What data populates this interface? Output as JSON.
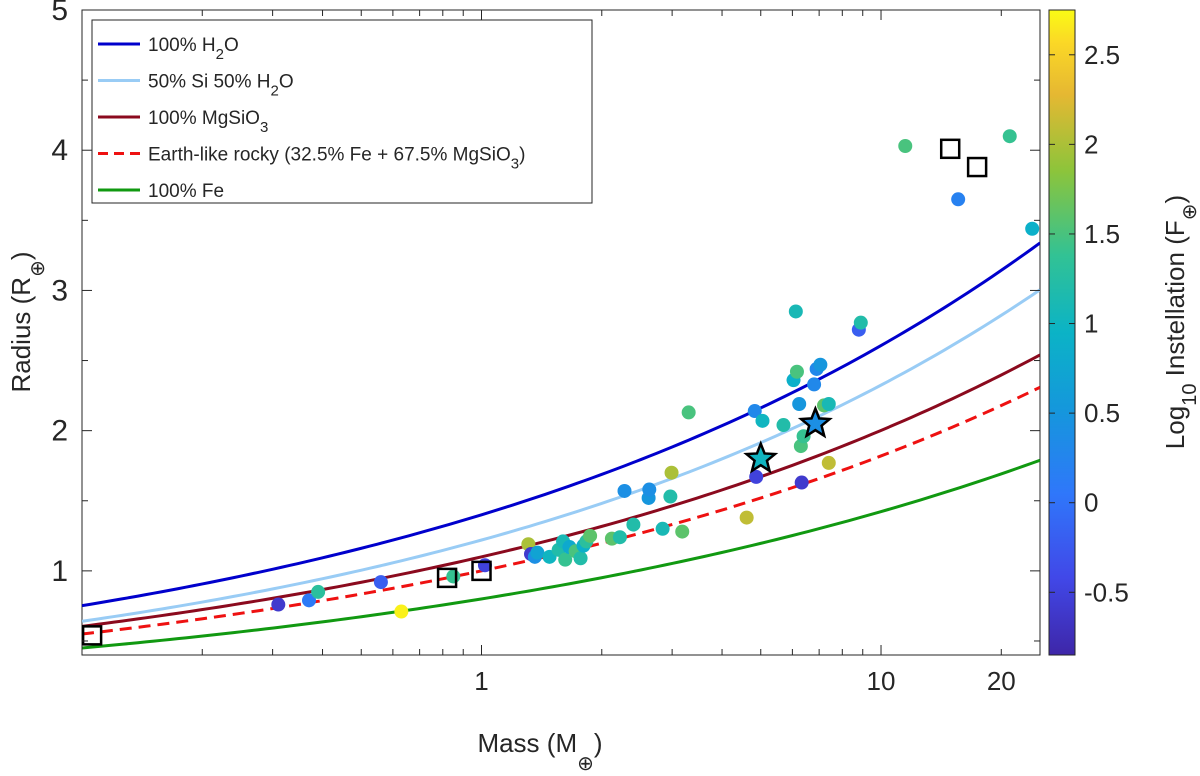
{
  "chart_data": {
    "type": "scatter",
    "x_scale": "log",
    "xlim": [
      0.1,
      25
    ],
    "ylim": [
      0.4,
      5
    ],
    "grid": false,
    "xlabel": {
      "main": "Mass (M",
      "sub": "⊕",
      "close": ")"
    },
    "ylabel": {
      "main": "Radius (R",
      "sub": "⊕",
      "close": ")"
    },
    "colorbar": {
      "label_main": "Log",
      "label_sub": "10",
      "label_rest": " Instellation  (F",
      "label_subsub": "⊕",
      "label_close": ")",
      "range": [
        -0.85,
        2.75
      ],
      "ticks": [
        {
          "v": -0.5,
          "label": "-0.5"
        },
        {
          "v": 0,
          "label": "0"
        },
        {
          "v": 0.5,
          "label": "0.5"
        },
        {
          "v": 1,
          "label": "1"
        },
        {
          "v": 1.5,
          "label": "1.5"
        },
        {
          "v": 2,
          "label": "2"
        },
        {
          "v": 2.5,
          "label": "2.5"
        }
      ]
    },
    "x_ticks": [
      {
        "v": 1,
        "label": "1"
      },
      {
        "v": 10,
        "label": "10"
      },
      {
        "v": 20,
        "label": "20"
      }
    ],
    "y_ticks": [
      {
        "v": 1,
        "label": "1"
      },
      {
        "v": 2,
        "label": "2"
      },
      {
        "v": 3,
        "label": "3"
      },
      {
        "v": 4,
        "label": "4"
      },
      {
        "v": 5,
        "label": "5"
      }
    ],
    "legend_position": "top-left",
    "curves": [
      {
        "name": "100% H2O",
        "label": "100% H",
        "label_sub": "2",
        "label_rest": "O",
        "label_sub2": "",
        "label_end": "",
        "color": "#0000cc",
        "dash": false,
        "coef": 1.4,
        "exp": 0.27
      },
      {
        "name": "50% Si 50% H2O",
        "label": "50% Si 50% H",
        "label_sub": "2",
        "label_rest": "O",
        "label_sub2": "",
        "label_end": "",
        "color": "#99ccf5",
        "dash": false,
        "coef": 1.22,
        "exp": 0.28
      },
      {
        "name": "100% MgSiO3",
        "label": "100% MgSiO",
        "label_sub": "3",
        "label_rest": "",
        "label_sub2": "",
        "label_end": "",
        "color": "#8b0a1e",
        "dash": false,
        "coef": 1.1,
        "exp": 0.26
      },
      {
        "name": "Earth-like rocky",
        "label": "Earth-like rocky (32.5% Fe + 67.5% MgSiO",
        "label_sub": "3",
        "label_rest": ")",
        "label_sub2": "",
        "label_end": "",
        "color": "#ee1111",
        "dash": true,
        "coef": 1.0,
        "exp": 0.26
      },
      {
        "name": "100% Fe",
        "label": "100% Fe",
        "label_sub": "",
        "label_rest": "",
        "label_sub2": "",
        "label_end": "",
        "color": "#119911",
        "dash": false,
        "coef": 0.8,
        "exp": 0.25
      }
    ],
    "points": [
      {
        "m": 0.31,
        "r": 0.76,
        "c": -0.6
      },
      {
        "m": 0.37,
        "r": 0.79,
        "c": 0.1
      },
      {
        "m": 0.39,
        "r": 0.85,
        "c": 1.3
      },
      {
        "m": 0.63,
        "r": 0.71,
        "c": 2.7
      },
      {
        "m": 0.56,
        "r": 0.92,
        "c": -0.2
      },
      {
        "m": 0.85,
        "r": 0.96,
        "c": 1.4
      },
      {
        "m": 1.02,
        "r": 1.04,
        "c": -0.5
      },
      {
        "m": 1.31,
        "r": 1.19,
        "c": 2.0
      },
      {
        "m": 1.33,
        "r": 1.12,
        "c": -0.6
      },
      {
        "m": 1.36,
        "r": 1.1,
        "c": 0.4
      },
      {
        "m": 1.38,
        "r": 1.13,
        "c": 0.7
      },
      {
        "m": 1.48,
        "r": 1.1,
        "c": 1.0
      },
      {
        "m": 1.56,
        "r": 1.15,
        "c": 1.2
      },
      {
        "m": 1.6,
        "r": 1.21,
        "c": 1.1
      },
      {
        "m": 1.62,
        "r": 1.08,
        "c": 1.4
      },
      {
        "m": 1.66,
        "r": 1.17,
        "c": 0.8
      },
      {
        "m": 1.72,
        "r": 1.14,
        "c": 1.5
      },
      {
        "m": 1.77,
        "r": 1.09,
        "c": 1.2
      },
      {
        "m": 1.8,
        "r": 1.18,
        "c": 0.9
      },
      {
        "m": 1.83,
        "r": 1.21,
        "c": 1.3
      },
      {
        "m": 1.87,
        "r": 1.25,
        "c": 1.6
      },
      {
        "m": 2.12,
        "r": 1.23,
        "c": 1.6
      },
      {
        "m": 2.22,
        "r": 1.24,
        "c": 1.2
      },
      {
        "m": 2.28,
        "r": 1.57,
        "c": 0.4
      },
      {
        "m": 2.4,
        "r": 1.33,
        "c": 1.2
      },
      {
        "m": 2.62,
        "r": 1.52,
        "c": 0.5
      },
      {
        "m": 2.63,
        "r": 1.58,
        "c": 0.4
      },
      {
        "m": 2.84,
        "r": 1.3,
        "c": 1.1
      },
      {
        "m": 2.97,
        "r": 1.53,
        "c": 1.2
      },
      {
        "m": 2.99,
        "r": 1.7,
        "c": 2.0
      },
      {
        "m": 3.18,
        "r": 1.28,
        "c": 1.6
      },
      {
        "m": 3.3,
        "r": 2.13,
        "c": 1.5
      },
      {
        "m": 4.61,
        "r": 1.38,
        "c": 2.1
      },
      {
        "m": 4.83,
        "r": 2.14,
        "c": 0.3
      },
      {
        "m": 4.87,
        "r": 1.67,
        "c": -0.5
      },
      {
        "m": 5.05,
        "r": 2.07,
        "c": 1.0
      },
      {
        "m": 5.7,
        "r": 2.04,
        "c": 1.2
      },
      {
        "m": 6.04,
        "r": 2.36,
        "c": 0.9
      },
      {
        "m": 6.12,
        "r": 2.85,
        "c": 1.1
      },
      {
        "m": 6.16,
        "r": 2.42,
        "c": 1.5
      },
      {
        "m": 6.24,
        "r": 2.19,
        "c": 0.5
      },
      {
        "m": 6.3,
        "r": 1.89,
        "c": 1.5
      },
      {
        "m": 6.33,
        "r": 1.63,
        "c": -0.6
      },
      {
        "m": 6.4,
        "r": 1.96,
        "c": 1.4
      },
      {
        "m": 6.8,
        "r": 2.33,
        "c": 0.3
      },
      {
        "m": 6.9,
        "r": 2.44,
        "c": 0.3
      },
      {
        "m": 7.05,
        "r": 2.47,
        "c": 0.5
      },
      {
        "m": 7.2,
        "r": 2.18,
        "c": 1.6
      },
      {
        "m": 7.4,
        "r": 1.77,
        "c": 2.1
      },
      {
        "m": 7.4,
        "r": 2.19,
        "c": 1.1
      },
      {
        "m": 8.8,
        "r": 2.72,
        "c": -0.2
      },
      {
        "m": 8.9,
        "r": 2.77,
        "c": 1.2
      },
      {
        "m": 11.5,
        "r": 4.03,
        "c": 1.5
      },
      {
        "m": 15.6,
        "r": 3.65,
        "c": 0.2
      },
      {
        "m": 21.0,
        "r": 4.1,
        "c": 1.4
      },
      {
        "m": 23.9,
        "r": 3.44,
        "c": 0.9
      }
    ],
    "stars": [
      {
        "m": 5.0,
        "r": 1.8,
        "c": 1.0
      },
      {
        "m": 6.85,
        "r": 2.05,
        "c": 0.4
      }
    ],
    "squares": [
      {
        "m": 0.106,
        "r": 0.54
      },
      {
        "m": 0.82,
        "r": 0.95
      },
      {
        "m": 1.0,
        "r": 1.0
      },
      {
        "m": 14.9,
        "r": 4.01
      },
      {
        "m": 17.4,
        "r": 3.88
      }
    ]
  }
}
